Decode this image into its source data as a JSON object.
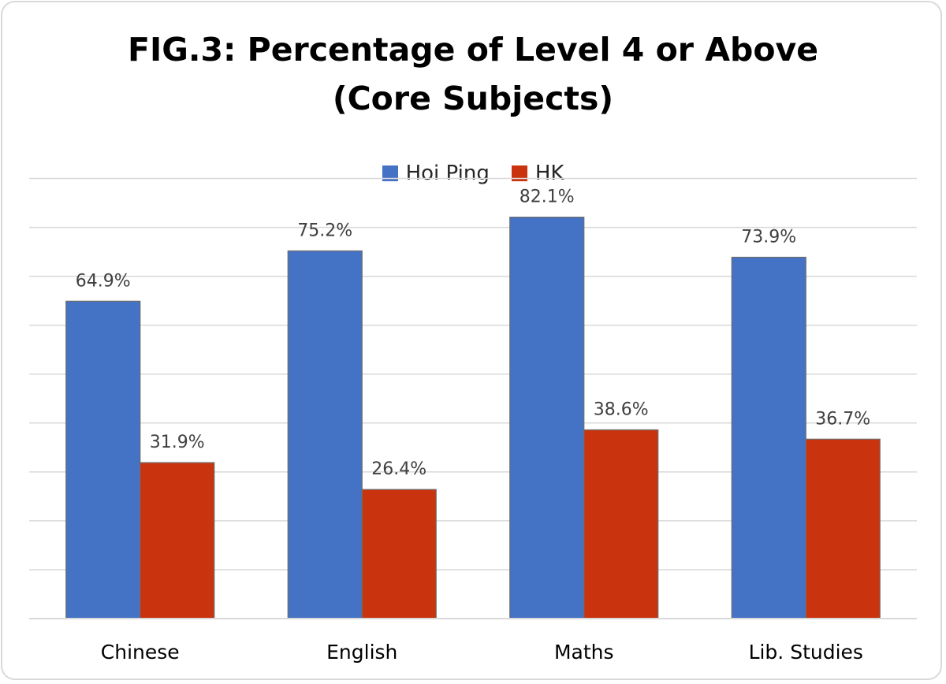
{
  "chart_data": {
    "type": "bar",
    "title_lines": [
      "FIG.3: Percentage of Level 4 or Above",
      "(Core Subjects)"
    ],
    "categories": [
      "Chinese",
      "English",
      "Maths",
      "Lib. Studies"
    ],
    "series": [
      {
        "name": "Hoi Ping",
        "values": [
          64.9,
          75.2,
          82.1,
          73.9
        ],
        "labels": [
          "64.9%",
          "75.2%",
          "82.1%",
          "73.9%"
        ],
        "color": "#4472c4"
      },
      {
        "name": "HK",
        "values": [
          31.9,
          26.4,
          38.6,
          36.7
        ],
        "labels": [
          "31.9%",
          "26.4%",
          "38.6%",
          "36.7%"
        ],
        "color": "#c9340e"
      }
    ],
    "ylim": [
      0,
      90
    ],
    "grid": true,
    "legend_position": "top"
  }
}
